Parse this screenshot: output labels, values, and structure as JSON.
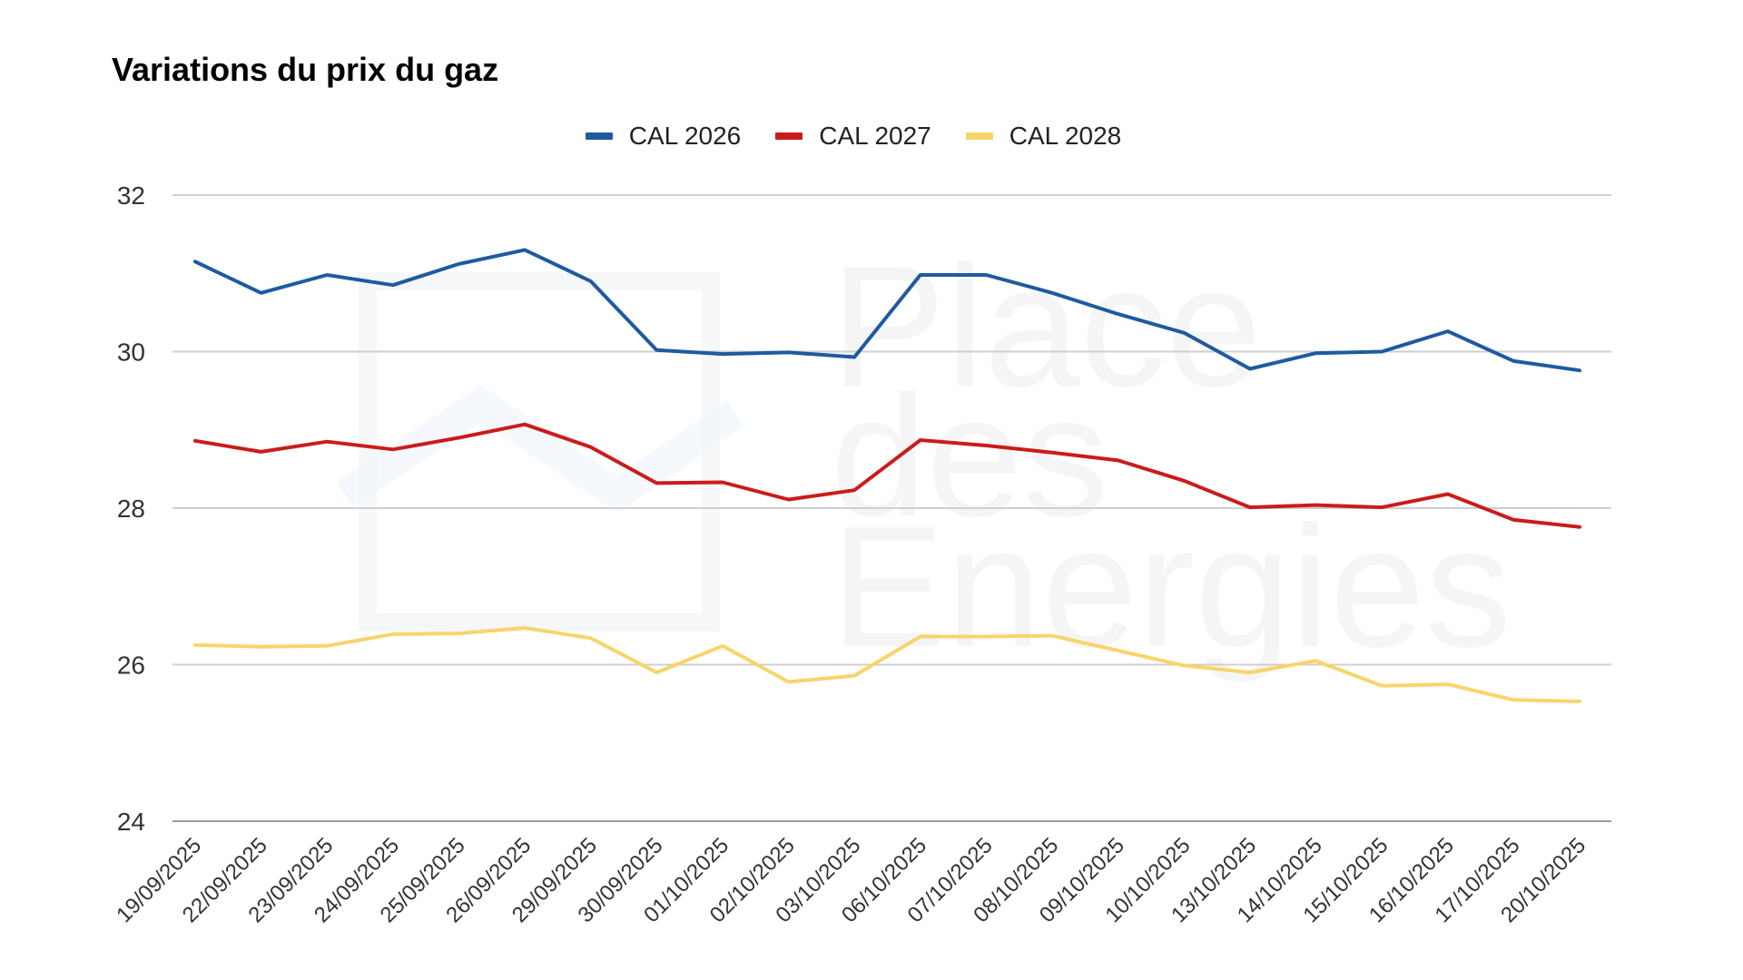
{
  "title": "Variations du prix du gaz",
  "watermark": {
    "line1": "Place",
    "line2": "des",
    "line3": "Energies"
  },
  "chart_data": {
    "type": "line",
    "title": "Variations du prix du gaz",
    "xlabel": "",
    "ylabel": "",
    "ylim": [
      24,
      32
    ],
    "yticks": [
      24,
      26,
      28,
      30,
      32
    ],
    "grid": true,
    "legend_position": "top-center",
    "categories": [
      "19/09/2025",
      "22/09/2025",
      "23/09/2025",
      "24/09/2025",
      "25/09/2025",
      "26/09/2025",
      "29/09/2025",
      "30/09/2025",
      "01/10/2025",
      "02/10/2025",
      "03/10/2025",
      "06/10/2025",
      "07/10/2025",
      "08/10/2025",
      "09/10/2025",
      "10/10/2025",
      "13/10/2025",
      "14/10/2025",
      "15/10/2025",
      "16/10/2025",
      "17/10/2025",
      "20/10/2025"
    ],
    "series": [
      {
        "name": "CAL 2026",
        "color": "#1f5aa0",
        "values": [
          31.15,
          30.75,
          30.98,
          30.85,
          31.12,
          31.3,
          30.9,
          30.02,
          29.97,
          29.99,
          29.93,
          30.98,
          30.98,
          30.75,
          30.48,
          30.24,
          29.78,
          29.98,
          30.0,
          30.26,
          29.88,
          29.76
        ]
      },
      {
        "name": "CAL 2027",
        "color": "#cc1b1b",
        "values": [
          28.86,
          28.72,
          28.85,
          28.75,
          28.9,
          29.07,
          28.78,
          28.32,
          28.33,
          28.11,
          28.23,
          28.87,
          28.8,
          28.71,
          28.61,
          28.35,
          28.01,
          28.04,
          28.01,
          28.18,
          27.85,
          27.76
        ]
      },
      {
        "name": "CAL 2028",
        "color": "#f8d46a",
        "values": [
          26.25,
          26.23,
          26.24,
          26.39,
          26.4,
          26.47,
          26.34,
          25.9,
          26.24,
          25.78,
          25.86,
          26.36,
          26.36,
          26.37,
          26.18,
          25.99,
          25.9,
          26.05,
          25.73,
          25.75,
          25.55,
          25.53
        ]
      }
    ]
  }
}
